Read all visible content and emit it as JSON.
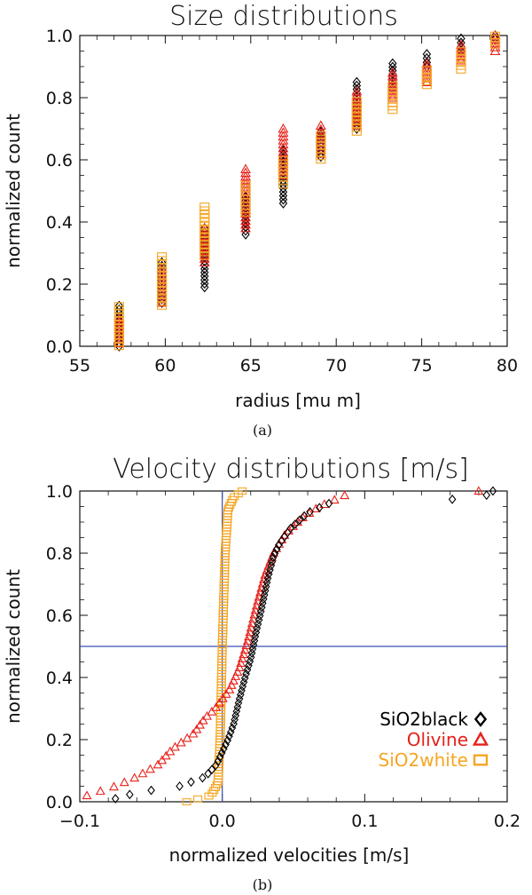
{
  "chart_data": [
    {
      "type": "scatter",
      "panel": "a",
      "caption": "(a)",
      "title": "Size distributions",
      "xlabel": "radius [mu m]",
      "ylabel": "normalized count",
      "xlim": [
        55,
        80
      ],
      "ylim": [
        0,
        1.0
      ],
      "xticks": [
        55,
        60,
        65,
        70,
        75,
        80
      ],
      "xtick_labels": [
        "55",
        "60",
        "65",
        "70",
        "75",
        "80"
      ],
      "yticks": [
        0,
        0.2,
        0.4,
        0.6,
        0.8,
        1.0
      ],
      "ytick_labels": [
        "0.0",
        "0.2",
        "0.4",
        "0.6",
        "0.8",
        "1.0"
      ],
      "series": [
        {
          "name": "SiO2black",
          "color": "#000000",
          "marker": "diamond",
          "columns": [
            {
              "x": 57.3,
              "y": [
                0.0,
                0.13
              ]
            },
            {
              "x": 59.8,
              "y": [
                0.14,
                0.27
              ]
            },
            {
              "x": 62.3,
              "y": [
                0.19,
                0.38
              ]
            },
            {
              "x": 64.7,
              "y": [
                0.36,
                0.48
              ]
            },
            {
              "x": 66.9,
              "y": [
                0.46,
                0.63
              ]
            },
            {
              "x": 69.1,
              "y": [
                0.61,
                0.69
              ]
            },
            {
              "x": 71.2,
              "y": [
                0.7,
                0.85
              ]
            },
            {
              "x": 73.3,
              "y": [
                0.83,
                0.91
              ]
            },
            {
              "x": 75.3,
              "y": [
                0.9,
                0.94
              ]
            },
            {
              "x": 77.3,
              "y": [
                0.95,
                0.99
              ]
            },
            {
              "x": 79.3,
              "y": [
                0.99,
                1.0
              ]
            }
          ]
        },
        {
          "name": "Olivine",
          "color": "#e8201a",
          "marker": "triangle",
          "columns": [
            {
              "x": 57.3,
              "y": [
                0.01,
                0.09
              ]
            },
            {
              "x": 59.8,
              "y": [
                0.14,
                0.25
              ]
            },
            {
              "x": 62.3,
              "y": [
                0.27,
                0.38
              ]
            },
            {
              "x": 64.7,
              "y": [
                0.38,
                0.57
              ]
            },
            {
              "x": 66.9,
              "y": [
                0.55,
                0.7
              ]
            },
            {
              "x": 69.1,
              "y": [
                0.62,
                0.71
              ]
            },
            {
              "x": 71.2,
              "y": [
                0.71,
                0.82
              ]
            },
            {
              "x": 73.3,
              "y": [
                0.8,
                0.88
              ]
            },
            {
              "x": 75.3,
              "y": [
                0.85,
                0.91
              ]
            },
            {
              "x": 77.3,
              "y": [
                0.92,
                0.97
              ]
            },
            {
              "x": 79.3,
              "y": [
                0.95,
                1.0
              ]
            }
          ]
        },
        {
          "name": "SiO2white",
          "color": "#f5a623",
          "marker": "square",
          "columns": [
            {
              "x": 57.3,
              "y": [
                0.0,
                0.13
              ]
            },
            {
              "x": 59.8,
              "y": [
                0.13,
                0.29
              ]
            },
            {
              "x": 62.3,
              "y": [
                0.29,
                0.45
              ]
            },
            {
              "x": 64.7,
              "y": [
                0.43,
                0.52
              ]
            },
            {
              "x": 66.9,
              "y": [
                0.52,
                0.6
              ]
            },
            {
              "x": 69.1,
              "y": [
                0.6,
                0.68
              ]
            },
            {
              "x": 71.2,
              "y": [
                0.69,
                0.79
              ]
            },
            {
              "x": 73.3,
              "y": [
                0.76,
                0.84
              ]
            },
            {
              "x": 75.3,
              "y": [
                0.84,
                0.89
              ]
            },
            {
              "x": 77.3,
              "y": [
                0.89,
                0.95
              ]
            },
            {
              "x": 79.3,
              "y": [
                0.97,
                1.0
              ]
            }
          ]
        }
      ]
    },
    {
      "type": "scatter",
      "panel": "b",
      "caption": "(b)",
      "title": "Velocity distributions [m/s]",
      "xlabel": "normalized velocities [m/s]",
      "ylabel": "normalized count",
      "xlim": [
        -0.1,
        0.2
      ],
      "ylim": [
        0,
        1.0
      ],
      "xticks": [
        -0.1,
        0.0,
        0.1,
        0.2
      ],
      "xtick_labels": [
        "−0.1",
        "0.0",
        "0.1",
        "0.2"
      ],
      "yticks": [
        0,
        0.2,
        0.4,
        0.6,
        0.8,
        1.0
      ],
      "ytick_labels": [
        "0.0",
        "0.2",
        "0.4",
        "0.6",
        "0.8",
        "1.0"
      ],
      "reference_lines": {
        "x": 0.0,
        "y": 0.5,
        "color": "#3a4fb0"
      },
      "legend": {
        "position": "lower-right",
        "entries": [
          "SiO2black",
          "Olivine",
          "SiO2white"
        ]
      },
      "series": [
        {
          "name": "SiO2black",
          "color": "#000000",
          "marker": "diamond",
          "cdf_knots": [
            [
              -0.075,
              0.01
            ],
            [
              -0.06,
              0.03
            ],
            [
              -0.03,
              0.05
            ],
            [
              -0.012,
              0.08
            ],
            [
              -0.004,
              0.12
            ],
            [
              0.0,
              0.16
            ],
            [
              0.004,
              0.2
            ],
            [
              0.008,
              0.25
            ],
            [
              0.012,
              0.33
            ],
            [
              0.016,
              0.4
            ],
            [
              0.02,
              0.46
            ],
            [
              0.024,
              0.55
            ],
            [
              0.028,
              0.63
            ],
            [
              0.032,
              0.72
            ],
            [
              0.036,
              0.79
            ],
            [
              0.04,
              0.83
            ],
            [
              0.048,
              0.88
            ],
            [
              0.06,
              0.93
            ],
            [
              0.075,
              0.96
            ],
            [
              0.12,
              0.965
            ],
            [
              0.155,
              0.97
            ],
            [
              0.185,
              0.985
            ],
            [
              0.19,
              1.0
            ]
          ],
          "n_points": 75
        },
        {
          "name": "Olivine",
          "color": "#e8201a",
          "marker": "triangle",
          "cdf_knots": [
            [
              -0.095,
              0.02
            ],
            [
              -0.075,
              0.05
            ],
            [
              -0.06,
              0.08
            ],
            [
              -0.045,
              0.12
            ],
            [
              -0.035,
              0.17
            ],
            [
              -0.02,
              0.22
            ],
            [
              -0.012,
              0.27
            ],
            [
              -0.005,
              0.3
            ],
            [
              0.005,
              0.36
            ],
            [
              0.012,
              0.43
            ],
            [
              0.018,
              0.52
            ],
            [
              0.024,
              0.63
            ],
            [
              0.03,
              0.73
            ],
            [
              0.036,
              0.8
            ],
            [
              0.044,
              0.86
            ],
            [
              0.055,
              0.91
            ],
            [
              0.068,
              0.95
            ],
            [
              0.088,
              0.99
            ],
            [
              0.18,
              1.0
            ]
          ],
          "n_points": 70
        },
        {
          "name": "SiO2white",
          "color": "#f5a623",
          "marker": "square",
          "cdf_knots": [
            [
              -0.025,
              0.0
            ],
            [
              -0.008,
              0.02
            ],
            [
              -0.003,
              0.06
            ],
            [
              -0.0015,
              0.2
            ],
            [
              0.0,
              0.5
            ],
            [
              0.002,
              0.8
            ],
            [
              0.004,
              0.94
            ],
            [
              0.008,
              0.98
            ],
            [
              0.014,
              1.0
            ]
          ],
          "n_points": 110
        }
      ]
    }
  ]
}
